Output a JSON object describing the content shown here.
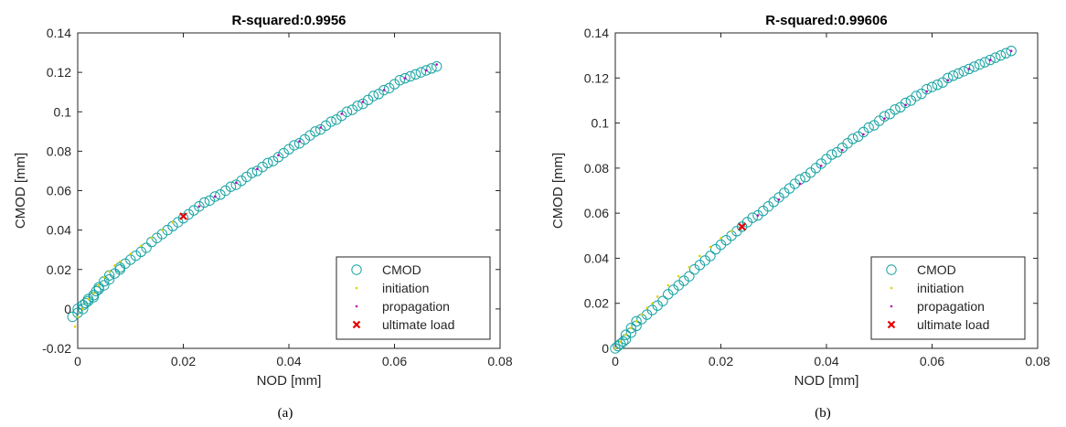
{
  "colors": {
    "cmod": "#17a2a2",
    "initiation": "#e0d000",
    "propagation": "#c000c0",
    "ultimate": "#e60000"
  },
  "chart_data": [
    {
      "type": "scatter",
      "title": "R-squared:0.9956",
      "xlabel": "NOD [mm]",
      "ylabel": "CMOD [mm]",
      "panel_label": "(a)",
      "xlim": [
        0,
        0.08
      ],
      "ylim": [
        -0.02,
        0.14
      ],
      "xticks": [
        0,
        0.02,
        0.04,
        0.06,
        0.08
      ],
      "xtick_labels": [
        "0",
        "0.02",
        "0.04",
        "0.06",
        "0.08"
      ],
      "yticks": [
        -0.02,
        0,
        0.02,
        0.04,
        0.06,
        0.08,
        0.1,
        0.12,
        0.14
      ],
      "ytick_labels": [
        "-0.02",
        "0",
        "0.02",
        "0.04",
        "0.06",
        "0.08",
        "0.1",
        "0.12",
        "0.14"
      ],
      "grid": false,
      "legend_position": "bottom-right",
      "legend": [
        "CMOD",
        "initiation",
        "propagation",
        "ultimate load"
      ],
      "series": [
        {
          "name": "CMOD",
          "marker": "circle",
          "points": [
            [
              -0.001,
              -0.004
            ],
            [
              0,
              -0.002
            ],
            [
              0,
              0
            ],
            [
              0.001,
              0
            ],
            [
              0.001,
              0.002
            ],
            [
              0.0015,
              0.003
            ],
            [
              0.002,
              0.004
            ],
            [
              0.002,
              0.005
            ],
            [
              0.003,
              0.006
            ],
            [
              0.003,
              0.007
            ],
            [
              0.0035,
              0.009
            ],
            [
              0.004,
              0.01
            ],
            [
              0.004,
              0.011
            ],
            [
              0.005,
              0.012
            ],
            [
              0.005,
              0.014
            ],
            [
              0.006,
              0.015
            ],
            [
              0.006,
              0.017
            ],
            [
              0.007,
              0.018
            ],
            [
              0.008,
              0.02
            ],
            [
              0.008,
              0.021
            ],
            [
              0.009,
              0.023
            ],
            [
              0.01,
              0.025
            ],
            [
              0.011,
              0.027
            ],
            [
              0.012,
              0.029
            ],
            [
              0.013,
              0.031
            ],
            [
              0.014,
              0.034
            ],
            [
              0.015,
              0.036
            ],
            [
              0.016,
              0.038
            ],
            [
              0.017,
              0.04
            ],
            [
              0.018,
              0.042
            ],
            [
              0.019,
              0.044
            ],
            [
              0.02,
              0.046
            ],
            [
              0.021,
              0.048
            ],
            [
              0.022,
              0.05
            ],
            [
              0.023,
              0.052
            ],
            [
              0.024,
              0.054
            ],
            [
              0.025,
              0.055
            ],
            [
              0.026,
              0.057
            ],
            [
              0.027,
              0.058
            ],
            [
              0.028,
              0.06
            ],
            [
              0.029,
              0.062
            ],
            [
              0.03,
              0.063
            ],
            [
              0.031,
              0.065
            ],
            [
              0.032,
              0.067
            ],
            [
              0.033,
              0.069
            ],
            [
              0.034,
              0.07
            ],
            [
              0.035,
              0.072
            ],
            [
              0.036,
              0.074
            ],
            [
              0.037,
              0.075
            ],
            [
              0.038,
              0.077
            ],
            [
              0.039,
              0.079
            ],
            [
              0.04,
              0.081
            ],
            [
              0.041,
              0.083
            ],
            [
              0.042,
              0.084
            ],
            [
              0.043,
              0.086
            ],
            [
              0.044,
              0.088
            ],
            [
              0.045,
              0.09
            ],
            [
              0.046,
              0.091
            ],
            [
              0.047,
              0.093
            ],
            [
              0.048,
              0.095
            ],
            [
              0.049,
              0.096
            ],
            [
              0.05,
              0.098
            ],
            [
              0.051,
              0.1
            ],
            [
              0.052,
              0.101
            ],
            [
              0.053,
              0.103
            ],
            [
              0.054,
              0.104
            ],
            [
              0.055,
              0.106
            ],
            [
              0.056,
              0.108
            ],
            [
              0.057,
              0.109
            ],
            [
              0.058,
              0.111
            ],
            [
              0.059,
              0.112
            ],
            [
              0.06,
              0.114
            ],
            [
              0.061,
              0.116
            ],
            [
              0.062,
              0.117
            ],
            [
              0.063,
              0.118
            ],
            [
              0.064,
              0.119
            ],
            [
              0.065,
              0.12
            ],
            [
              0.066,
              0.121
            ],
            [
              0.067,
              0.122
            ],
            [
              0.068,
              0.123
            ]
          ]
        },
        {
          "name": "initiation",
          "marker": "dot",
          "points": [
            [
              -0.0005,
              -0.009
            ],
            [
              0,
              -0.004
            ],
            [
              0.001,
              0
            ],
            [
              0.002,
              0.005
            ],
            [
              0.003,
              0.008
            ],
            [
              0.004,
              0.012
            ],
            [
              0.005,
              0.016
            ],
            [
              0.006,
              0.019
            ],
            [
              0.007,
              0.022
            ],
            [
              0.008,
              0.024
            ],
            [
              0.01,
              0.028
            ],
            [
              0.012,
              0.032
            ],
            [
              0.014,
              0.036
            ],
            [
              0.016,
              0.04
            ],
            [
              0.018,
              0.044
            ],
            [
              0.02,
              0.047
            ]
          ]
        },
        {
          "name": "propagation",
          "marker": "dot",
          "points": [
            [
              0.02,
              0.047
            ],
            [
              0.023,
              0.052
            ],
            [
              0.026,
              0.057
            ],
            [
              0.03,
              0.064
            ],
            [
              0.034,
              0.071
            ],
            [
              0.038,
              0.078
            ],
            [
              0.042,
              0.085
            ],
            [
              0.046,
              0.092
            ],
            [
              0.05,
              0.099
            ],
            [
              0.054,
              0.105
            ],
            [
              0.058,
              0.111
            ],
            [
              0.062,
              0.117
            ],
            [
              0.066,
              0.121
            ],
            [
              0.068,
              0.124
            ]
          ]
        },
        {
          "name": "ultimate load",
          "marker": "x",
          "points": [
            [
              0.02,
              0.047
            ]
          ]
        }
      ]
    },
    {
      "type": "scatter",
      "title": "R-squared:0.99606",
      "xlabel": "NOD [mm]",
      "ylabel": "CMOD [mm]",
      "panel_label": "(b)",
      "xlim": [
        0,
        0.08
      ],
      "ylim": [
        0,
        0.14
      ],
      "xticks": [
        0,
        0.02,
        0.04,
        0.06,
        0.08
      ],
      "xtick_labels": [
        "0",
        "0.02",
        "0.04",
        "0.06",
        "0.08"
      ],
      "yticks": [
        0,
        0.02,
        0.04,
        0.06,
        0.08,
        0.1,
        0.12,
        0.14
      ],
      "ytick_labels": [
        "0",
        "0.02",
        "0.04",
        "0.06",
        "0.08",
        "0.1",
        "0.12",
        "0.14"
      ],
      "grid": false,
      "legend_position": "bottom-right",
      "legend": [
        "CMOD",
        "initiation",
        "propagation",
        "ultimate load"
      ],
      "series": [
        {
          "name": "CMOD",
          "marker": "circle",
          "points": [
            [
              0,
              0
            ],
            [
              0.0005,
              0.001
            ],
            [
              0.001,
              0.002
            ],
            [
              0.0015,
              0.003
            ],
            [
              0.002,
              0.004
            ],
            [
              0.002,
              0.006
            ],
            [
              0.003,
              0.007
            ],
            [
              0.003,
              0.009
            ],
            [
              0.004,
              0.01
            ],
            [
              0.004,
              0.012
            ],
            [
              0.005,
              0.013
            ],
            [
              0.006,
              0.015
            ],
            [
              0.007,
              0.017
            ],
            [
              0.008,
              0.019
            ],
            [
              0.009,
              0.021
            ],
            [
              0.01,
              0.024
            ],
            [
              0.011,
              0.026
            ],
            [
              0.012,
              0.028
            ],
            [
              0.013,
              0.03
            ],
            [
              0.014,
              0.032
            ],
            [
              0.015,
              0.035
            ],
            [
              0.016,
              0.037
            ],
            [
              0.017,
              0.039
            ],
            [
              0.018,
              0.041
            ],
            [
              0.019,
              0.044
            ],
            [
              0.02,
              0.046
            ],
            [
              0.021,
              0.048
            ],
            [
              0.022,
              0.05
            ],
            [
              0.023,
              0.052
            ],
            [
              0.024,
              0.054
            ],
            [
              0.025,
              0.056
            ],
            [
              0.026,
              0.058
            ],
            [
              0.027,
              0.059
            ],
            [
              0.028,
              0.061
            ],
            [
              0.029,
              0.063
            ],
            [
              0.03,
              0.065
            ],
            [
              0.031,
              0.067
            ],
            [
              0.032,
              0.069
            ],
            [
              0.033,
              0.071
            ],
            [
              0.034,
              0.073
            ],
            [
              0.035,
              0.075
            ],
            [
              0.036,
              0.076
            ],
            [
              0.037,
              0.078
            ],
            [
              0.038,
              0.08
            ],
            [
              0.039,
              0.082
            ],
            [
              0.04,
              0.084
            ],
            [
              0.041,
              0.086
            ],
            [
              0.042,
              0.087
            ],
            [
              0.043,
              0.089
            ],
            [
              0.044,
              0.091
            ],
            [
              0.045,
              0.093
            ],
            [
              0.046,
              0.094
            ],
            [
              0.047,
              0.096
            ],
            [
              0.048,
              0.098
            ],
            [
              0.049,
              0.099
            ],
            [
              0.05,
              0.101
            ],
            [
              0.051,
              0.103
            ],
            [
              0.052,
              0.104
            ],
            [
              0.053,
              0.106
            ],
            [
              0.054,
              0.107
            ],
            [
              0.055,
              0.109
            ],
            [
              0.056,
              0.11
            ],
            [
              0.057,
              0.112
            ],
            [
              0.058,
              0.113
            ],
            [
              0.059,
              0.115
            ],
            [
              0.06,
              0.116
            ],
            [
              0.061,
              0.117
            ],
            [
              0.062,
              0.118
            ],
            [
              0.063,
              0.12
            ],
            [
              0.064,
              0.121
            ],
            [
              0.065,
              0.122
            ],
            [
              0.066,
              0.123
            ],
            [
              0.067,
              0.124
            ],
            [
              0.068,
              0.125
            ],
            [
              0.069,
              0.126
            ],
            [
              0.07,
              0.127
            ],
            [
              0.071,
              0.128
            ],
            [
              0.072,
              0.129
            ],
            [
              0.073,
              0.13
            ],
            [
              0.074,
              0.131
            ],
            [
              0.075,
              0.132
            ]
          ]
        },
        {
          "name": "initiation",
          "marker": "dot",
          "points": [
            [
              0,
              0
            ],
            [
              0.001,
              0.003
            ],
            [
              0.002,
              0.006
            ],
            [
              0.003,
              0.009
            ],
            [
              0.004,
              0.012
            ],
            [
              0.005,
              0.015
            ],
            [
              0.006,
              0.018
            ],
            [
              0.007,
              0.02
            ],
            [
              0.008,
              0.023
            ],
            [
              0.01,
              0.028
            ],
            [
              0.012,
              0.032
            ],
            [
              0.014,
              0.036
            ],
            [
              0.016,
              0.041
            ],
            [
              0.018,
              0.045
            ],
            [
              0.02,
              0.049
            ],
            [
              0.022,
              0.052
            ],
            [
              0.024,
              0.054
            ]
          ]
        },
        {
          "name": "propagation",
          "marker": "dot",
          "points": [
            [
              0.024,
              0.054
            ],
            [
              0.027,
              0.059
            ],
            [
              0.031,
              0.066
            ],
            [
              0.035,
              0.073
            ],
            [
              0.039,
              0.081
            ],
            [
              0.043,
              0.088
            ],
            [
              0.047,
              0.095
            ],
            [
              0.051,
              0.102
            ],
            [
              0.055,
              0.108
            ],
            [
              0.059,
              0.114
            ],
            [
              0.063,
              0.119
            ],
            [
              0.067,
              0.124
            ],
            [
              0.071,
              0.128
            ],
            [
              0.075,
              0.132
            ]
          ]
        },
        {
          "name": "ultimate load",
          "marker": "x",
          "points": [
            [
              0.024,
              0.054
            ]
          ]
        }
      ]
    }
  ]
}
